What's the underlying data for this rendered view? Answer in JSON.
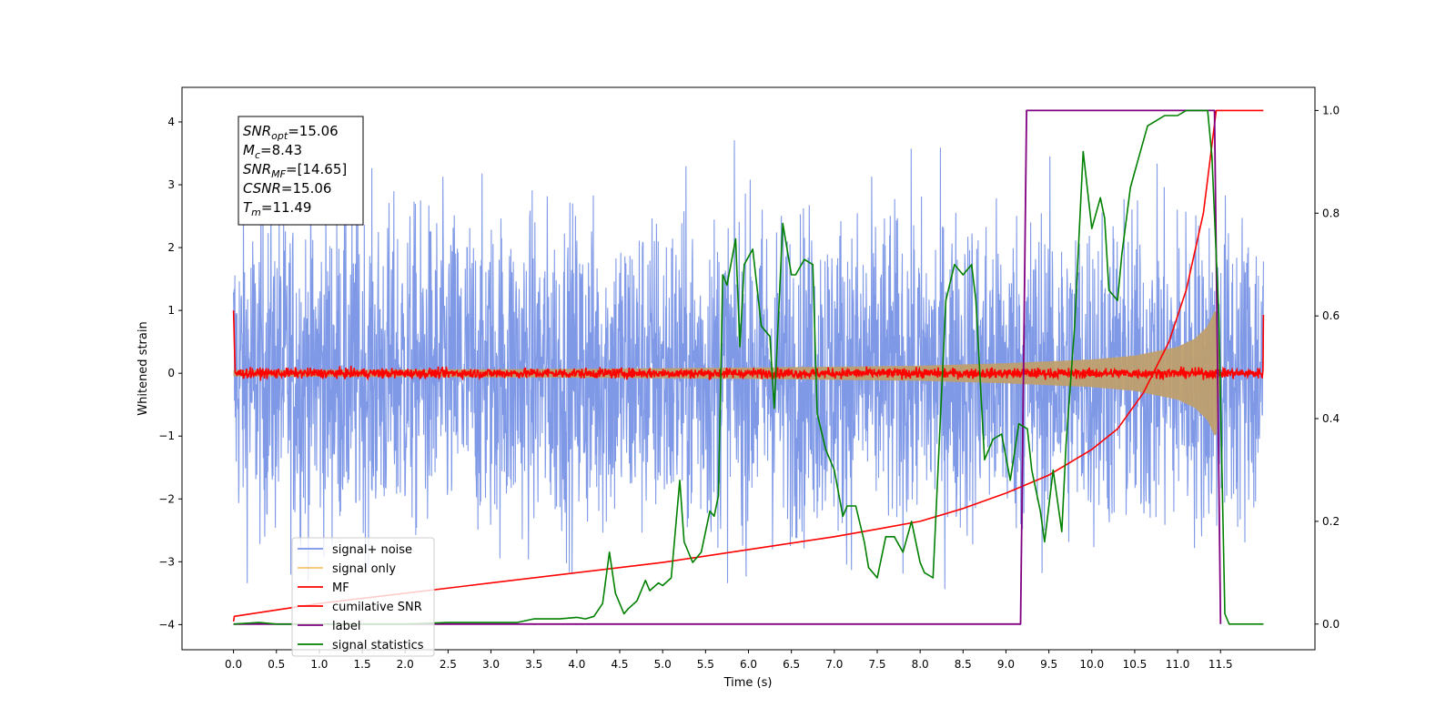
{
  "chart_data": {
    "type": "line",
    "xlabel": "Time (s)",
    "ylabel": "Whitened strain",
    "xlim": [
      -0.6,
      12.6
    ],
    "ylim": [
      -4.4,
      4.55
    ],
    "y2lim": [
      -0.05,
      1.045
    ],
    "x_ticks": [
      0.0,
      0.5,
      1.0,
      1.5,
      2.0,
      2.5,
      3.0,
      3.5,
      4.0,
      4.5,
      5.0,
      5.5,
      6.0,
      6.5,
      7.0,
      7.5,
      8.0,
      8.5,
      9.0,
      9.5,
      10.0,
      10.5,
      11.0,
      11.5
    ],
    "x_tick_labels": [
      "0.0",
      "0.5",
      "1.0",
      "1.5",
      "2.0",
      "2.5",
      "3.0",
      "3.5",
      "4.0",
      "4.5",
      "5.0",
      "5.5",
      "6.0",
      "6.5",
      "7.0",
      "7.5",
      "8.0",
      "8.5",
      "9.0",
      "9.5",
      "10.0",
      "10.5",
      "11.0",
      "11.5"
    ],
    "y_ticks": [
      -4,
      -3,
      -2,
      -1,
      0,
      1,
      2,
      3,
      4
    ],
    "y_tick_labels": [
      "−4",
      "−3",
      "−2",
      "−1",
      "0",
      "1",
      "2",
      "3",
      "4"
    ],
    "y2_ticks": [
      0.0,
      0.2,
      0.4,
      0.6,
      0.8,
      1.0
    ],
    "y2_tick_labels": [
      "0.0",
      "0.2",
      "0.4",
      "0.6",
      "0.8",
      "1.0"
    ],
    "grid": false,
    "legend_position": "lower-left",
    "annotation": {
      "lines": [
        {
          "base": "SNR",
          "sub": "opt",
          "rest": "=15.06"
        },
        {
          "base": "M",
          "sub": "c",
          "rest": "=8.43"
        },
        {
          "base": "SNR",
          "sub": "MF",
          "rest": "=[14.65]"
        },
        {
          "base": "CSNR",
          "sub": "",
          "rest": "=15.06"
        },
        {
          "base": "T",
          "sub": "m",
          "rest": "=11.49"
        }
      ]
    },
    "series": [
      {
        "name": "signal+ noise",
        "axis": "left",
        "color": "#7893e6",
        "description_kind": "noise_band",
        "x_range": [
          0.0,
          12.0
        ],
        "typical_amplitude": 2.3,
        "max_value": 4.18,
        "min_value": -4.0
      },
      {
        "name": "signal only",
        "axis": "left",
        "color": "#f5c36b",
        "fill_color": "#bf9f6e",
        "description_kind": "chirp_envelope",
        "envelope_x": [
          0.0,
          2.0,
          4.0,
          6.0,
          8.0,
          9.0,
          10.0,
          10.5,
          11.0,
          11.2,
          11.35,
          11.45,
          11.5
        ],
        "envelope_y": [
          0.05,
          0.06,
          0.07,
          0.09,
          0.12,
          0.16,
          0.22,
          0.28,
          0.42,
          0.55,
          0.75,
          1.05,
          0.0
        ]
      },
      {
        "name": "MF",
        "axis": "left",
        "color": "#ff0000",
        "description_kind": "mf_noise",
        "x_range": [
          0.0,
          12.0
        ],
        "typical_amplitude": 0.12,
        "start_value": 1.0,
        "end_value": 0.93
      },
      {
        "name": "cumilative SNR",
        "axis": "right",
        "color": "#ff0000",
        "x": [
          0.0,
          0.01,
          1.0,
          2.0,
          3.0,
          4.0,
          5.0,
          6.0,
          7.0,
          7.5,
          8.0,
          8.5,
          9.0,
          9.5,
          10.0,
          10.3,
          10.6,
          10.9,
          11.1,
          11.3,
          11.45,
          11.55,
          12.0
        ],
        "values": [
          0.005,
          0.015,
          0.04,
          0.06,
          0.08,
          0.1,
          0.12,
          0.145,
          0.17,
          0.185,
          0.2,
          0.225,
          0.255,
          0.29,
          0.34,
          0.38,
          0.45,
          0.55,
          0.65,
          0.8,
          1.0,
          1.0,
          1.0
        ]
      },
      {
        "name": "label",
        "axis": "right",
        "color": "#800080",
        "x": [
          0.0,
          9.17,
          9.24,
          11.43,
          11.5,
          11.5
        ],
        "values": [
          0.0,
          0.0,
          1.0,
          1.0,
          0.0,
          0.0
        ]
      },
      {
        "name": "signal statistics",
        "axis": "right",
        "color": "#008000",
        "x": [
          0.0,
          0.3,
          0.5,
          1.0,
          1.5,
          2.0,
          2.5,
          3.0,
          3.3,
          3.5,
          3.6,
          3.8,
          4.0,
          4.1,
          4.2,
          4.3,
          4.38,
          4.45,
          4.55,
          4.6,
          4.7,
          4.8,
          4.85,
          4.95,
          5.0,
          5.1,
          5.2,
          5.25,
          5.35,
          5.45,
          5.55,
          5.6,
          5.65,
          5.7,
          5.75,
          5.85,
          5.9,
          5.95,
          6.05,
          6.15,
          6.25,
          6.3,
          6.4,
          6.5,
          6.55,
          6.65,
          6.75,
          6.8,
          6.9,
          7.0,
          7.1,
          7.15,
          7.25,
          7.35,
          7.4,
          7.5,
          7.6,
          7.7,
          7.8,
          7.9,
          8.0,
          8.05,
          8.15,
          8.3,
          8.4,
          8.5,
          8.6,
          8.65,
          8.75,
          8.85,
          8.95,
          9.05,
          9.15,
          9.25,
          9.3,
          9.4,
          9.45,
          9.55,
          9.65,
          9.7,
          9.8,
          9.9,
          10.0,
          10.1,
          10.15,
          10.2,
          10.3,
          10.35,
          10.45,
          10.55,
          10.65,
          10.75,
          10.85,
          11.0,
          11.1,
          11.2,
          11.35,
          11.4,
          11.48,
          11.55,
          11.6,
          11.7,
          11.8,
          12.0
        ],
        "values": [
          0.0,
          0.003,
          0.0,
          0.0,
          0.0,
          0.0,
          0.003,
          0.003,
          0.003,
          0.01,
          0.01,
          0.01,
          0.013,
          0.01,
          0.015,
          0.04,
          0.14,
          0.06,
          0.02,
          0.03,
          0.045,
          0.085,
          0.065,
          0.08,
          0.075,
          0.09,
          0.28,
          0.16,
          0.12,
          0.14,
          0.22,
          0.21,
          0.25,
          0.68,
          0.66,
          0.75,
          0.54,
          0.7,
          0.73,
          0.58,
          0.56,
          0.42,
          0.78,
          0.68,
          0.68,
          0.71,
          0.7,
          0.41,
          0.34,
          0.3,
          0.21,
          0.23,
          0.23,
          0.16,
          0.11,
          0.09,
          0.17,
          0.17,
          0.14,
          0.2,
          0.12,
          0.1,
          0.09,
          0.63,
          0.7,
          0.68,
          0.7,
          0.63,
          0.32,
          0.36,
          0.37,
          0.28,
          0.39,
          0.38,
          0.3,
          0.22,
          0.16,
          0.3,
          0.18,
          0.35,
          0.58,
          0.92,
          0.77,
          0.83,
          0.79,
          0.65,
          0.63,
          0.72,
          0.85,
          0.91,
          0.97,
          0.98,
          0.99,
          0.99,
          1.0,
          1.0,
          1.0,
          0.91,
          0.6,
          0.02,
          0.0,
          0.0,
          0.0,
          0.0
        ]
      }
    ]
  }
}
